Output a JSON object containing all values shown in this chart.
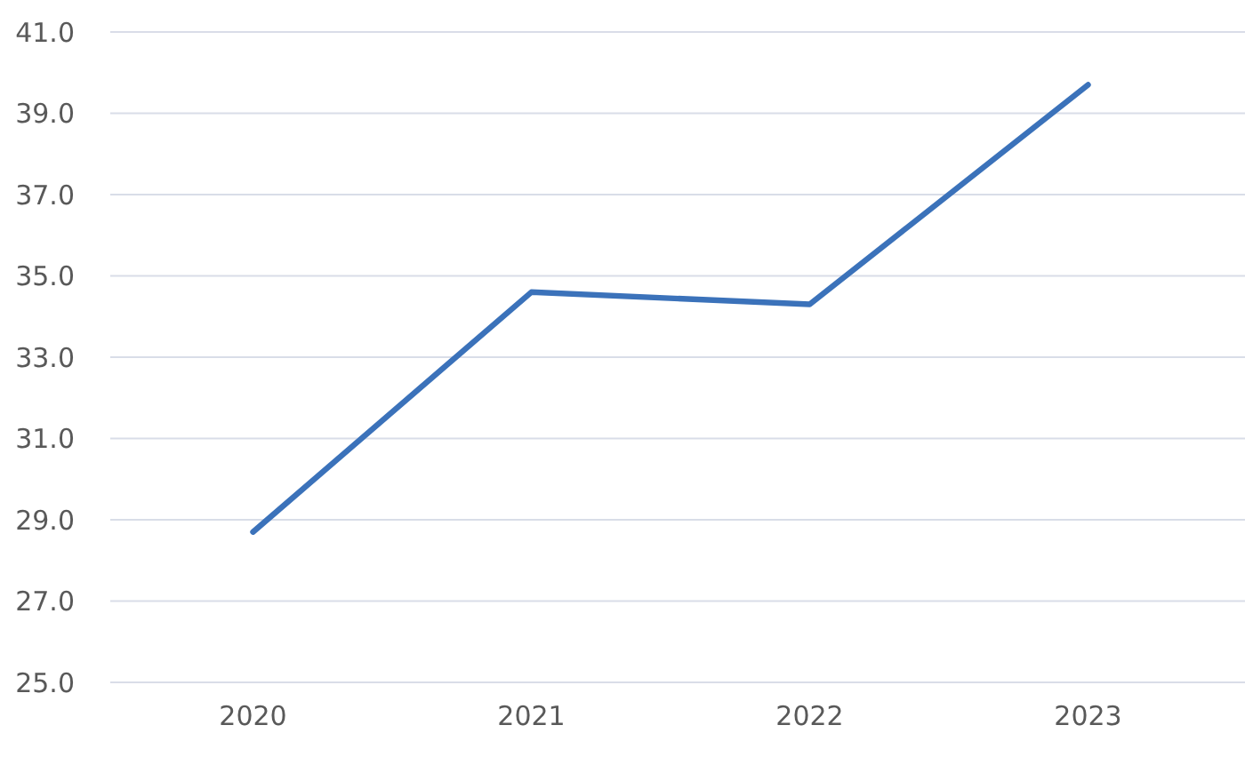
{
  "chart_data": {
    "type": "line",
    "categories": [
      "2020",
      "2021",
      "2022",
      "2023"
    ],
    "series": [
      {
        "color": "#3b72ba",
        "values": [
          28.7,
          34.6,
          34.3,
          39.7
        ]
      }
    ],
    "ylim": [
      25,
      41
    ],
    "yticks": [
      {
        "value": 25,
        "label": "25.0"
      },
      {
        "value": 27,
        "label": "27.0"
      },
      {
        "value": 29,
        "label": "29.0"
      },
      {
        "value": 31,
        "label": "31.0"
      },
      {
        "value": 33,
        "label": "33.0"
      },
      {
        "value": 35,
        "label": "35.0"
      },
      {
        "value": 37,
        "label": "37.0"
      },
      {
        "value": 39,
        "label": "39.0"
      },
      {
        "value": 41,
        "label": "41.0"
      }
    ],
    "grid": "y",
    "marker": "none",
    "line_style": "solid"
  }
}
